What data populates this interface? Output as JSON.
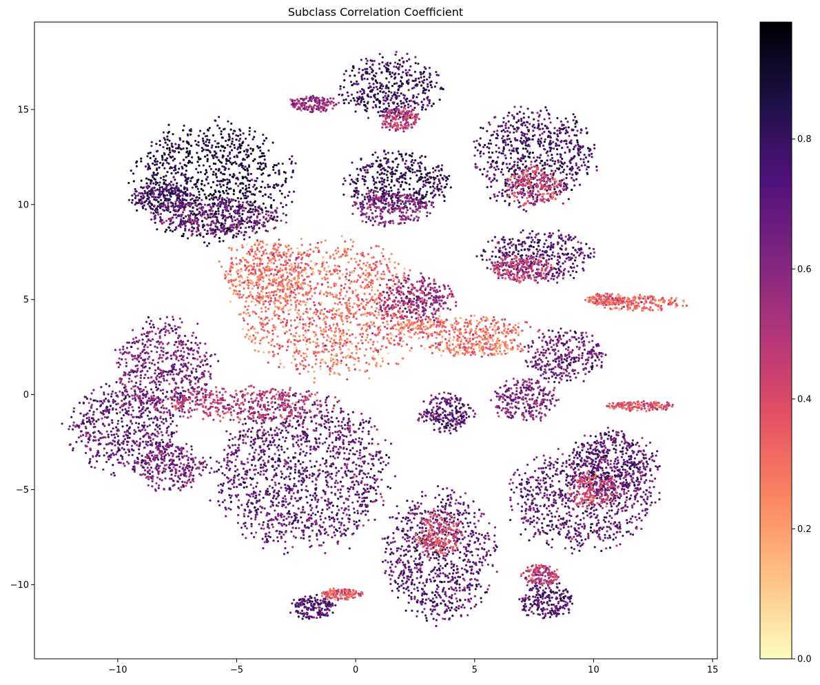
{
  "chart_data": {
    "type": "scatter",
    "title": "Subclass Correlation Coefficient",
    "xlabel": "",
    "ylabel": "",
    "xlim": [
      -13.5,
      15.2
    ],
    "ylim": [
      -13.9,
      19.6
    ],
    "grid": false,
    "x_ticks": [
      -10,
      -5,
      0,
      5,
      10,
      15
    ],
    "y_ticks": [
      -10,
      -5,
      0,
      5,
      10,
      15
    ],
    "colorbar": {
      "label": "",
      "colormap": "magma_r",
      "range": [
        0.0,
        0.98
      ],
      "ticks": [
        0.0,
        0.2,
        0.4,
        0.6,
        0.8
      ],
      "stops": [
        "#fcfdbf",
        "#fec287",
        "#fb8761",
        "#e75263",
        "#b73779",
        "#822681",
        "#51127c",
        "#1d1147",
        "#000004"
      ]
    },
    "clusters": [
      {
        "cx": -6.0,
        "cy": 11.2,
        "rx": 3.1,
        "ry": 3.0,
        "value": 0.85
      },
      {
        "cx": -8.2,
        "cy": 10.4,
        "rx": 1.3,
        "ry": 0.7,
        "value": 0.75
      },
      {
        "cx": -5.8,
        "cy": 9.3,
        "rx": 2.6,
        "ry": 1.0,
        "value": 0.65
      },
      {
        "cx": 1.5,
        "cy": 16.2,
        "rx": 2.0,
        "ry": 1.6,
        "value": 0.78
      },
      {
        "cx": 1.8,
        "cy": 14.5,
        "rx": 0.8,
        "ry": 0.6,
        "value": 0.45
      },
      {
        "cx": -1.8,
        "cy": 15.3,
        "rx": 1.0,
        "ry": 0.4,
        "value": 0.55
      },
      {
        "cx": 7.5,
        "cy": 12.5,
        "rx": 2.5,
        "ry": 2.5,
        "value": 0.75
      },
      {
        "cx": 7.5,
        "cy": 11.0,
        "rx": 1.2,
        "ry": 1.0,
        "value": 0.4
      },
      {
        "cx": 1.8,
        "cy": 11.2,
        "rx": 2.2,
        "ry": 1.5,
        "value": 0.8
      },
      {
        "cx": 1.5,
        "cy": 9.8,
        "rx": 1.6,
        "ry": 0.9,
        "value": 0.6
      },
      {
        "cx": 7.6,
        "cy": 7.3,
        "rx": 2.2,
        "ry": 1.3,
        "value": 0.7
      },
      {
        "cx": 7.0,
        "cy": 6.6,
        "rx": 1.3,
        "ry": 0.7,
        "value": 0.45
      },
      {
        "cx": -1.0,
        "cy": 4.5,
        "rx": 3.8,
        "ry": 3.4,
        "value": 0.28
      },
      {
        "cx": -3.8,
        "cy": 6.5,
        "rx": 1.8,
        "ry": 1.6,
        "value": 0.28
      },
      {
        "cx": 2.5,
        "cy": 5.0,
        "rx": 1.6,
        "ry": 1.2,
        "value": 0.55
      },
      {
        "cx": 4.5,
        "cy": 3.5,
        "rx": 2.8,
        "ry": 0.6,
        "value": 0.28
      },
      {
        "cx": 5.0,
        "cy": 2.5,
        "rx": 2.0,
        "ry": 0.5,
        "value": 0.25
      },
      {
        "cx": 12.0,
        "cy": 4.8,
        "rx": 1.8,
        "ry": 0.4,
        "value": 0.3
      },
      {
        "cx": 10.5,
        "cy": 5.0,
        "rx": 0.8,
        "ry": 0.3,
        "value": 0.32
      },
      {
        "cx": 8.8,
        "cy": 2.0,
        "rx": 1.6,
        "ry": 1.3,
        "value": 0.65
      },
      {
        "cx": 7.1,
        "cy": -0.3,
        "rx": 1.3,
        "ry": 1.1,
        "value": 0.6
      },
      {
        "cx": 3.8,
        "cy": -1.0,
        "rx": 1.1,
        "ry": 1.0,
        "value": 0.7
      },
      {
        "cx": 12.0,
        "cy": -0.6,
        "rx": 1.4,
        "ry": 0.25,
        "value": 0.35
      },
      {
        "cx": -8.0,
        "cy": 1.5,
        "rx": 2.0,
        "ry": 2.4,
        "value": 0.62
      },
      {
        "cx": -9.8,
        "cy": -1.8,
        "rx": 2.2,
        "ry": 2.2,
        "value": 0.68
      },
      {
        "cx": -7.8,
        "cy": -3.8,
        "rx": 1.4,
        "ry": 1.3,
        "value": 0.62
      },
      {
        "cx": -2.3,
        "cy": -4.2,
        "rx": 3.6,
        "ry": 3.8,
        "value": 0.68
      },
      {
        "cx": -4.5,
        "cy": -0.5,
        "rx": 3.5,
        "ry": 0.9,
        "value": 0.45
      },
      {
        "cx": 3.5,
        "cy": -8.5,
        "rx": 2.2,
        "ry": 3.4,
        "value": 0.7
      },
      {
        "cx": 3.5,
        "cy": -7.3,
        "rx": 0.9,
        "ry": 1.2,
        "value": 0.38
      },
      {
        "cx": 9.5,
        "cy": -5.5,
        "rx": 3.0,
        "ry": 2.5,
        "value": 0.68
      },
      {
        "cx": 10.0,
        "cy": -5.0,
        "rx": 1.1,
        "ry": 0.9,
        "value": 0.38
      },
      {
        "cx": 10.8,
        "cy": -3.5,
        "rx": 1.8,
        "ry": 1.6,
        "value": 0.7
      },
      {
        "cx": 8.0,
        "cy": -10.8,
        "rx": 1.1,
        "ry": 1.0,
        "value": 0.72
      },
      {
        "cx": 7.8,
        "cy": -9.5,
        "rx": 0.8,
        "ry": 0.5,
        "value": 0.45
      },
      {
        "cx": -1.8,
        "cy": -11.2,
        "rx": 0.9,
        "ry": 0.6,
        "value": 0.72
      },
      {
        "cx": -0.6,
        "cy": -10.5,
        "rx": 0.8,
        "ry": 0.3,
        "value": 0.35
      }
    ]
  }
}
